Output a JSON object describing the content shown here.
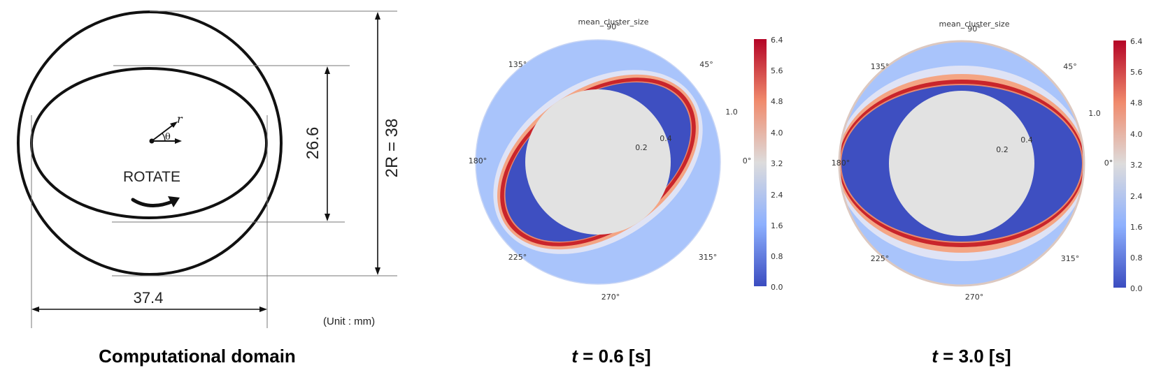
{
  "domain_panel": {
    "dim_vertical_outer": "2R = 38",
    "dim_vertical_inner": "26.6",
    "dim_horizontal": "37.4",
    "unit_note": "(Unit : mm)",
    "rotate_label": "ROTATE",
    "r_symbol": "r",
    "theta_symbol": "θ",
    "caption": "Computational domain"
  },
  "plots": [
    {
      "title": "mean_cluster_size",
      "caption_t": "t",
      "caption_rest": " = 0.6 [s]",
      "rotation_deg": 35,
      "bulge_ratio": 0.86,
      "angle_labels": {
        "a0": "0°",
        "a45": "45°",
        "a90": "90°",
        "a135": "135°",
        "a180": "180°",
        "a225": "225°",
        "a270": "270°",
        "a315": "315°"
      },
      "radial_labels": {
        "r1": "0.2",
        "r2": "0.4",
        "r3": "1.0"
      }
    },
    {
      "title": "mean_cluster_size",
      "caption_t": "t",
      "caption_rest": " = 3.0 [s]",
      "rotation_deg": 0,
      "bulge_ratio": 0.88,
      "angle_labels": {
        "a0": "0°",
        "a45": "45°",
        "a90": "90°",
        "a135": "135°",
        "a180": "180°",
        "a225": "225°",
        "a270": "270°",
        "a315": "315°"
      },
      "radial_labels": {
        "r1": "0.2",
        "r2": "0.4",
        "r3": "1.0"
      }
    }
  ],
  "colorbar": {
    "ticks": [
      "6.4",
      "5.6",
      "4.8",
      "4.0",
      "3.2",
      "2.4",
      "1.6",
      "0.8",
      "0.0"
    ],
    "colors": {
      "top": "#b40426",
      "upper": "#f08a6c",
      "mid": "#dddcdc",
      "lower": "#8db0fe",
      "bottom": "#3b4cc0"
    }
  },
  "colors": {
    "inner_circle": "#e2e2e2",
    "cluster_blue": "#3e4fc1",
    "outer_blue": "#a9c4fb",
    "red_band": "#c9252b",
    "orange_band": "#f4a584"
  }
}
